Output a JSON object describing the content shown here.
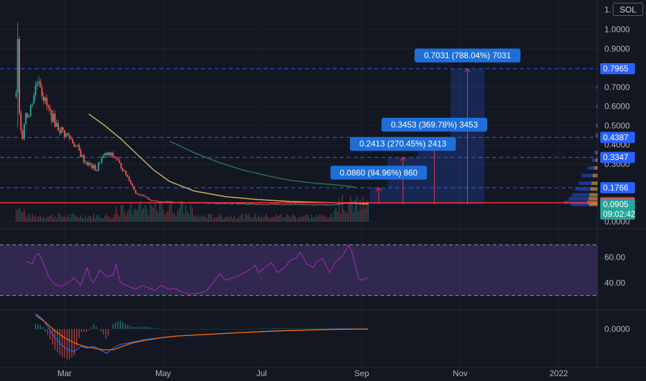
{
  "header": {
    "scale_one": "1.",
    "symbol": "SOL"
  },
  "colors": {
    "background": "#131722",
    "grid": "#1e222d",
    "up": "#26a69a",
    "down": "#ef5350",
    "ma_fast": "#c9b458",
    "ma_slow": "#2e6b5e",
    "rsi": "#9c27b0",
    "macd": "#2962ff",
    "signal": "#ff6d00",
    "price_line": "#f23645",
    "measure": "#2962ff",
    "axis_text": "#b2b5be"
  },
  "time_axis": [
    {
      "label": "Mar",
      "value": 30
    },
    {
      "label": "May",
      "value": 91
    },
    {
      "label": "Jul",
      "value": 152
    },
    {
      "label": "Sep",
      "value": 214
    },
    {
      "label": "Nov",
      "value": 275
    },
    {
      "label": "2022",
      "value": 336
    }
  ],
  "chart_data": [
    {
      "type": "candlestick",
      "title": "",
      "ylim": [
        0,
        1.1
      ],
      "x_range": [
        -10,
        360
      ],
      "price_axis": [
        "1.0000",
        "0.9000",
        "0.7000",
        "0.6000",
        "0.5000",
        "0.4000",
        "0.3000",
        "0.0000"
      ],
      "tags": [
        {
          "label": "0.7965",
          "value": 0.7965,
          "color": "#2962ff"
        },
        {
          "label": "0.4387",
          "value": 0.4387,
          "color": "#2962ff"
        },
        {
          "label": "0.3347",
          "value": 0.3347,
          "color": "#2962ff"
        },
        {
          "label": "0.1766",
          "value": 0.1766,
          "color": "#2962ff"
        },
        {
          "label": "0.0989",
          "value": 0.0989,
          "color": "#f23645"
        },
        {
          "label": "0.0905",
          "value": 0.0905,
          "color": "#26a69a"
        },
        {
          "label": "09:02:42",
          "value": 0.04,
          "color": "#26a69a"
        }
      ],
      "dashed_levels": [
        0.7965,
        0.4387,
        0.3347,
        0.1766
      ],
      "price_line": 0.0989,
      "measures": [
        {
          "label": "0.0860 (94.96%) 860",
          "start": 219,
          "end": 230,
          "low": 0.0905,
          "high": 0.1766,
          "label_y": 0.255
        },
        {
          "label": "0.2413 (270.45%) 2413",
          "start": 230,
          "end": 249,
          "low": 0.0905,
          "high": 0.3347,
          "label_y": 0.405
        },
        {
          "label": "0.3453 (369.78%) 3453",
          "start": 249,
          "end": 269,
          "low": 0.0905,
          "high": 0.4387,
          "label_y": 0.505
        },
        {
          "label": "0.7031 (788.04%) 7031",
          "start": 269,
          "end": 290,
          "low": 0.0905,
          "high": 0.7965,
          "label_y": 0.865
        }
      ],
      "keypoints": [
        [
          0,
          0.65
        ],
        [
          1,
          0.92
        ],
        [
          2,
          0.55
        ],
        [
          4,
          0.45
        ],
        [
          6,
          0.58
        ],
        [
          8,
          0.55
        ],
        [
          10,
          0.64
        ],
        [
          12,
          0.7
        ],
        [
          14,
          0.76
        ],
        [
          16,
          0.68
        ],
        [
          18,
          0.62
        ],
        [
          20,
          0.58
        ],
        [
          22,
          0.55
        ],
        [
          26,
          0.49
        ],
        [
          30,
          0.46
        ],
        [
          34,
          0.43
        ],
        [
          38,
          0.38
        ],
        [
          42,
          0.32
        ],
        [
          46,
          0.29
        ],
        [
          50,
          0.27
        ],
        [
          52,
          0.32
        ],
        [
          56,
          0.35
        ],
        [
          60,
          0.34
        ],
        [
          62,
          0.33
        ],
        [
          66,
          0.27
        ],
        [
          70,
          0.22
        ],
        [
          74,
          0.15
        ],
        [
          78,
          0.135
        ],
        [
          84,
          0.11
        ],
        [
          90,
          0.105
        ],
        [
          100,
          0.1
        ],
        [
          115,
          0.098
        ],
        [
          130,
          0.095
        ],
        [
          150,
          0.092
        ],
        [
          170,
          0.09
        ],
        [
          185,
          0.088
        ],
        [
          195,
          0.089
        ],
        [
          200,
          0.092
        ],
        [
          205,
          0.098
        ],
        [
          210,
          0.1
        ],
        [
          214,
          0.095
        ],
        [
          218,
          0.0905
        ]
      ],
      "ma_fast": [
        [
          45,
          0.56
        ],
        [
          55,
          0.5
        ],
        [
          65,
          0.43
        ],
        [
          75,
          0.35
        ],
        [
          85,
          0.27
        ],
        [
          95,
          0.21
        ],
        [
          110,
          0.16
        ],
        [
          130,
          0.13
        ],
        [
          150,
          0.115
        ],
        [
          170,
          0.105
        ],
        [
          190,
          0.1
        ],
        [
          210,
          0.096
        ],
        [
          218,
          0.095
        ]
      ],
      "ma_slow": [
        [
          95,
          0.42
        ],
        [
          110,
          0.36
        ],
        [
          125,
          0.31
        ],
        [
          140,
          0.27
        ],
        [
          155,
          0.24
        ],
        [
          170,
          0.215
        ],
        [
          185,
          0.2
        ],
        [
          200,
          0.19
        ],
        [
          210,
          0.18
        ]
      ],
      "volume_profile": [
        [
          0.36,
          6
        ],
        [
          0.32,
          10
        ],
        [
          0.28,
          18
        ],
        [
          0.24,
          28
        ],
        [
          0.2,
          34
        ],
        [
          0.17,
          40
        ],
        [
          0.14,
          46
        ],
        [
          0.12,
          52
        ],
        [
          0.1,
          60
        ],
        [
          0.09,
          48
        ],
        [
          0.45,
          4
        ],
        [
          0.5,
          3
        ],
        [
          0.6,
          2
        ],
        [
          0.7,
          2
        ]
      ]
    },
    {
      "type": "line",
      "title": "",
      "ylim": [
        20,
        80
      ],
      "ticks": [
        "60.00",
        "40.00"
      ],
      "band": [
        30,
        70
      ],
      "series": [
        {
          "values": [
            [
              6,
              57
            ],
            [
              10,
              55
            ],
            [
              12,
              62
            ],
            [
              14,
              63
            ],
            [
              16,
              58
            ],
            [
              18,
              52
            ],
            [
              20,
              45
            ],
            [
              24,
              39
            ],
            [
              28,
              37
            ],
            [
              32,
              40
            ],
            [
              36,
              44
            ],
            [
              40,
              38
            ],
            [
              44,
              52
            ],
            [
              46,
              43
            ],
            [
              48,
              40
            ],
            [
              52,
              50
            ],
            [
              56,
              45
            ],
            [
              60,
              46
            ],
            [
              62,
              55
            ],
            [
              64,
              42
            ],
            [
              66,
              39
            ],
            [
              70,
              37
            ],
            [
              74,
              35
            ],
            [
              78,
              38
            ],
            [
              82,
              36
            ],
            [
              86,
              34
            ],
            [
              90,
              38
            ],
            [
              94,
              35
            ],
            [
              98,
              36
            ],
            [
              102,
              33
            ],
            [
              108,
              31
            ],
            [
              114,
              32
            ],
            [
              118,
              34
            ],
            [
              122,
              40
            ],
            [
              126,
              47
            ],
            [
              130,
              42
            ],
            [
              134,
              44
            ],
            [
              140,
              47
            ],
            [
              144,
              50
            ],
            [
              148,
              54
            ],
            [
              150,
              48
            ],
            [
              154,
              52
            ],
            [
              158,
              56
            ],
            [
              162,
              48
            ],
            [
              166,
              52
            ],
            [
              170,
              58
            ],
            [
              174,
              60
            ],
            [
              176,
              64
            ],
            [
              180,
              55
            ],
            [
              184,
              52
            ],
            [
              186,
              57
            ],
            [
              190,
              59
            ],
            [
              194,
              48
            ],
            [
              198,
              57
            ],
            [
              202,
              61
            ],
            [
              206,
              70
            ],
            [
              208,
              64
            ],
            [
              212,
              44
            ],
            [
              214,
              42
            ],
            [
              218,
              44
            ]
          ]
        }
      ]
    },
    {
      "type": "line",
      "title": "",
      "ylim": [
        -0.2,
        0.1
      ],
      "ticks": [
        "0.0000"
      ],
      "series": [
        {
          "values": [
            [
              12,
              0.09
            ],
            [
              16,
              0.06
            ],
            [
              20,
              0.01
            ],
            [
              24,
              -0.05
            ],
            [
              28,
              -0.09
            ],
            [
              32,
              -0.12
            ],
            [
              36,
              -0.13
            ],
            [
              40,
              -0.1
            ],
            [
              44,
              -0.11
            ],
            [
              48,
              -0.1
            ],
            [
              52,
              -0.12
            ],
            [
              56,
              -0.14
            ],
            [
              60,
              -0.11
            ],
            [
              64,
              -0.09
            ],
            [
              70,
              -0.08
            ],
            [
              80,
              -0.06
            ],
            [
              90,
              -0.05
            ],
            [
              100,
              -0.04
            ],
            [
              120,
              -0.03
            ],
            [
              140,
              -0.02
            ],
            [
              160,
              -0.01
            ],
            [
              180,
              -0.005
            ],
            [
              200,
              0
            ],
            [
              218,
              0
            ]
          ]
        },
        {
          "values": [
            [
              12,
              0.08
            ],
            [
              18,
              0.04
            ],
            [
              24,
              -0.01
            ],
            [
              30,
              -0.05
            ],
            [
              36,
              -0.08
            ],
            [
              42,
              -0.1
            ],
            [
              48,
              -0.11
            ],
            [
              54,
              -0.12
            ],
            [
              60,
              -0.12
            ],
            [
              66,
              -0.1
            ],
            [
              72,
              -0.08
            ],
            [
              80,
              -0.065
            ],
            [
              90,
              -0.05
            ],
            [
              100,
              -0.04
            ],
            [
              120,
              -0.03
            ],
            [
              140,
              -0.02
            ],
            [
              160,
              -0.012
            ],
            [
              180,
              -0.006
            ],
            [
              200,
              -0.002
            ],
            [
              218,
              0
            ]
          ]
        }
      ]
    }
  ]
}
